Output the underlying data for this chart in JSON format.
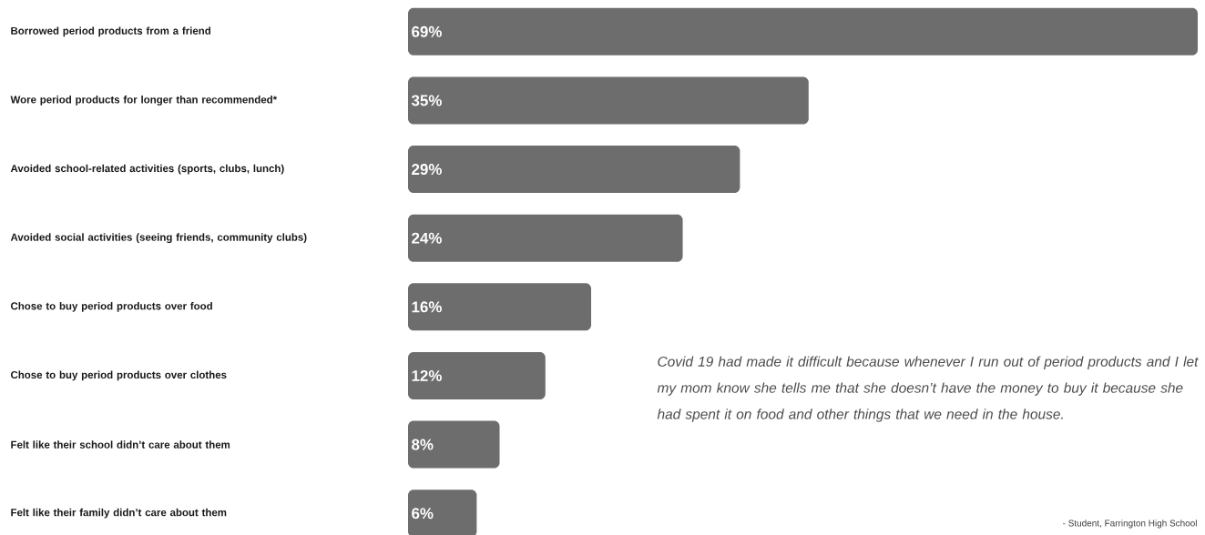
{
  "chart_data": {
    "type": "bar",
    "orientation": "horizontal",
    "categories": [
      "Borrowed period products from a friend",
      "Wore period products for longer than recommended*",
      "Avoided school-related activities (sports, clubs, lunch)",
      "Avoided social activities (seeing friends, community clubs)",
      "Chose to buy period products over food",
      "Chose to buy period products over clothes",
      "Felt like their school didn’t care about them",
      "Felt like their family didn’t care about them"
    ],
    "values": [
      69,
      35,
      29,
      24,
      16,
      12,
      8,
      6
    ],
    "value_labels": [
      "69%",
      "35%",
      "29%",
      "24%",
      "16%",
      "12%",
      "8%",
      "6%"
    ],
    "color": "#6d6d6d",
    "annotations": [
      "Covid 19 had made it difficult because whenever I run out of period products and I let my mom know she tells me that she doesn’t have the money to buy it because she had spent it on food and other things that we need in the house.",
      "- Student, Farrington High School"
    ]
  }
}
